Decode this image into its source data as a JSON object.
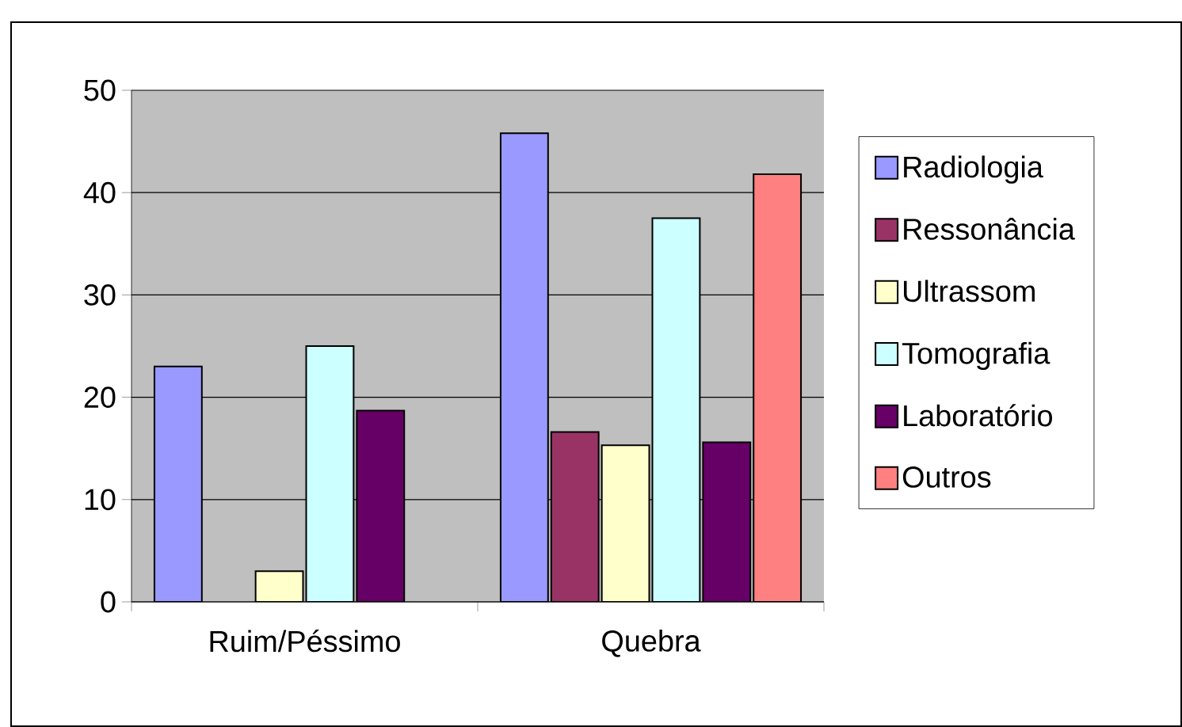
{
  "chart_data": {
    "type": "bar",
    "categories": [
      "Ruim/Péssimo",
      "Quebra"
    ],
    "series": [
      {
        "name": "Radiologia",
        "color": "#9999ff",
        "values": [
          23,
          45.8
        ]
      },
      {
        "name": "Ressonância",
        "color": "#993366",
        "values": [
          null,
          16.6
        ]
      },
      {
        "name": "Ultrassom",
        "color": "#ffffcc",
        "values": [
          3,
          15.3
        ]
      },
      {
        "name": "Tomografia",
        "color": "#ccffff",
        "values": [
          25,
          37.5
        ]
      },
      {
        "name": "Laboratório",
        "color": "#660066",
        "values": [
          18.7,
          15.6
        ]
      },
      {
        "name": "Outros",
        "color": "#ff8080",
        "values": [
          null,
          41.8
        ]
      }
    ],
    "ylim": [
      0,
      50
    ],
    "yticks": [
      0,
      10,
      20,
      30,
      40,
      50
    ],
    "grid": "y",
    "legend": "right"
  }
}
